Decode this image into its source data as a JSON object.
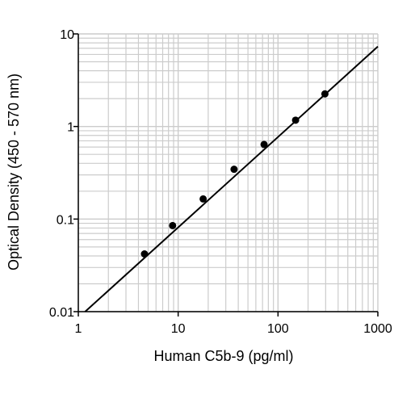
{
  "chart_data": {
    "type": "scatter",
    "title": "",
    "xlabel": "Human C5b-9 (pg/ml)",
    "ylabel": "Optical Density (450 - 570 nm)",
    "xscale": "log",
    "yscale": "log",
    "xlim": [
      1,
      1000
    ],
    "ylim": [
      0.01,
      10
    ],
    "x_ticks": [
      1,
      10,
      100,
      1000
    ],
    "x_tick_labels": [
      "1",
      "10",
      "100",
      "1000"
    ],
    "y_ticks": [
      0.01,
      0.1,
      1,
      10
    ],
    "y_tick_labels": [
      "0.01",
      "0.1",
      "1",
      "10"
    ],
    "grid": true,
    "grid_minor": true,
    "series": [
      {
        "type": "scatter",
        "x": [
          4.6,
          8.8,
          17.8,
          36.3,
          72.5,
          150,
          295
        ],
        "y": [
          0.042,
          0.085,
          0.165,
          0.345,
          0.64,
          1.17,
          2.25
        ]
      },
      {
        "type": "line",
        "x": [
          1.17,
          1000
        ],
        "y": [
          0.01,
          7.3
        ]
      }
    ],
    "colors": {
      "grid": "#cccccc",
      "axis": "#000000",
      "marker": "#000000",
      "line": "#000000"
    }
  }
}
